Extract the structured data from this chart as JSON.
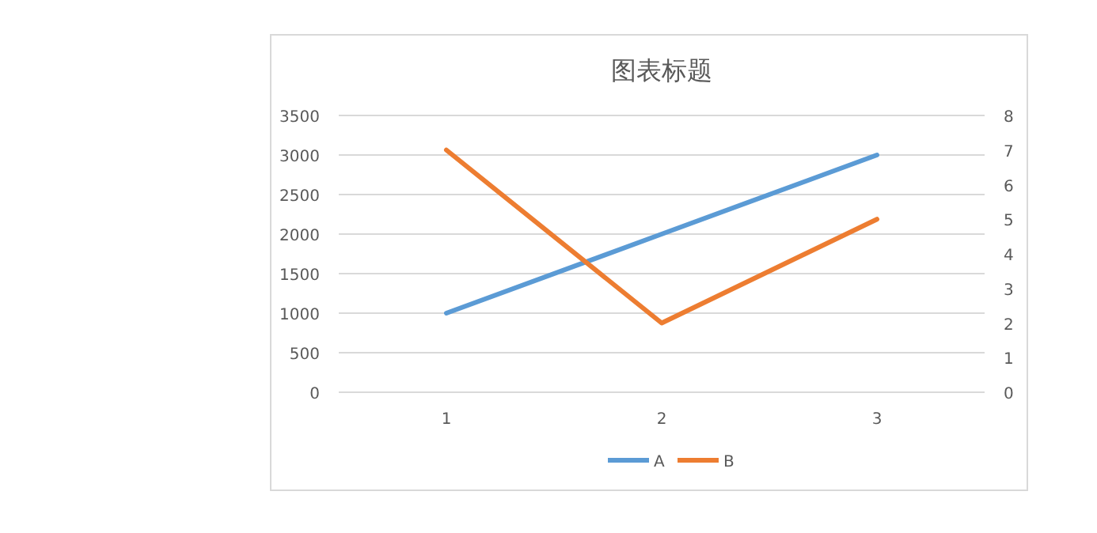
{
  "chart_data": {
    "type": "line",
    "title": "图表标题",
    "categories": [
      "1",
      "2",
      "3"
    ],
    "series": [
      {
        "name": "A",
        "color": "#5b9bd5",
        "values": [
          1000,
          2000,
          3000
        ]
      },
      {
        "name": "B",
        "color": "#ed7d31",
        "values": [
          7,
          2,
          5
        ],
        "axis": "y2"
      }
    ],
    "ylim": [
      0,
      3500
    ],
    "yticks": [
      0,
      500,
      1000,
      1500,
      2000,
      2500,
      3000,
      3500
    ],
    "y2lim": [
      0,
      8
    ],
    "y2ticks": [
      0,
      1,
      2,
      3,
      4,
      5,
      6,
      7,
      8
    ],
    "grid": "y",
    "legend": "bottom"
  }
}
